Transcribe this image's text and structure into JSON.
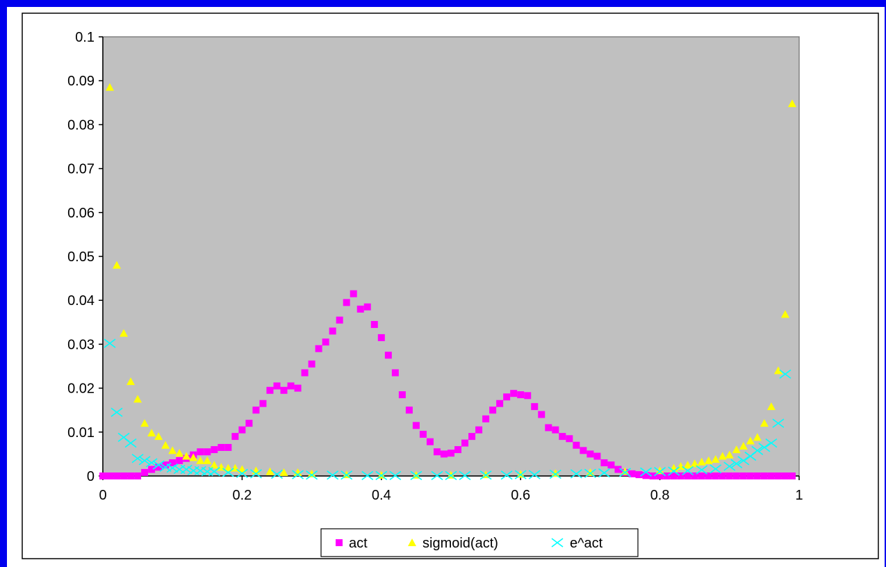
{
  "chart_data": {
    "type": "scatter",
    "xlim": [
      0,
      1
    ],
    "ylim": [
      0,
      0.1
    ],
    "xticks": [
      0,
      0.2,
      0.4,
      0.6,
      0.8,
      1
    ],
    "xtick_labels": [
      "0",
      "0.2",
      "0.4",
      "0.6",
      "0.8",
      "1"
    ],
    "yticks": [
      0,
      0.01,
      0.02,
      0.03,
      0.04,
      0.05,
      0.06,
      0.07,
      0.08,
      0.09,
      0.1
    ],
    "ytick_labels": [
      "0",
      "0.01",
      "0.02",
      "0.03",
      "0.04",
      "0.05",
      "0.06",
      "0.07",
      "0.08",
      "0.09",
      "0.1"
    ],
    "grid": false,
    "legend_position": "bottom-center",
    "plot_background": "#c0c0c0",
    "series": [
      {
        "name": "act",
        "marker": "square",
        "color": "#ff00ff",
        "x": [
          0,
          0.01,
          0.02,
          0.03,
          0.04,
          0.05,
          0.06,
          0.07,
          0.08,
          0.09,
          0.1,
          0.11,
          0.12,
          0.13,
          0.14,
          0.15,
          0.16,
          0.17,
          0.18,
          0.19,
          0.2,
          0.21,
          0.22,
          0.23,
          0.24,
          0.25,
          0.26,
          0.27,
          0.28,
          0.29,
          0.3,
          0.31,
          0.32,
          0.33,
          0.34,
          0.35,
          0.36,
          0.37,
          0.38,
          0.39,
          0.4,
          0.41,
          0.42,
          0.43,
          0.44,
          0.45,
          0.46,
          0.47,
          0.48,
          0.49,
          0.5,
          0.51,
          0.52,
          0.53,
          0.54,
          0.55,
          0.56,
          0.57,
          0.58,
          0.59,
          0.6,
          0.61,
          0.62,
          0.63,
          0.64,
          0.65,
          0.66,
          0.67,
          0.68,
          0.69,
          0.7,
          0.71,
          0.72,
          0.73,
          0.74,
          0.75,
          0.76,
          0.77,
          0.78,
          0.79,
          0.8,
          0.81,
          0.82,
          0.83,
          0.84,
          0.85,
          0.86,
          0.87,
          0.88,
          0.89,
          0.9,
          0.91,
          0.92,
          0.93,
          0.94,
          0.95,
          0.96,
          0.97,
          0.98,
          0.99
        ],
        "y": [
          0,
          0,
          0,
          0,
          0,
          0,
          0.0008,
          0.0015,
          0.002,
          0.0025,
          0.003,
          0.0035,
          0.004,
          0.0048,
          0.0055,
          0.0055,
          0.006,
          0.0065,
          0.0065,
          0.009,
          0.0105,
          0.012,
          0.015,
          0.0165,
          0.0195,
          0.0205,
          0.0195,
          0.0205,
          0.02,
          0.0235,
          0.0255,
          0.029,
          0.0305,
          0.033,
          0.0355,
          0.0395,
          0.0415,
          0.038,
          0.0385,
          0.0345,
          0.0315,
          0.0275,
          0.0235,
          0.0185,
          0.015,
          0.0115,
          0.0095,
          0.0078,
          0.0055,
          0.005,
          0.0052,
          0.006,
          0.0075,
          0.009,
          0.0105,
          0.013,
          0.015,
          0.0165,
          0.018,
          0.0188,
          0.0185,
          0.0183,
          0.0158,
          0.014,
          0.011,
          0.0105,
          0.009,
          0.0085,
          0.007,
          0.0058,
          0.005,
          0.0045,
          0.003,
          0.0025,
          0.0015,
          0.0008,
          0.0005,
          0.0003,
          0.0001,
          0,
          0,
          0,
          0,
          0,
          0,
          0,
          0,
          0,
          0,
          0,
          0,
          0,
          0,
          0,
          0,
          0,
          0,
          0,
          0,
          0
        ]
      },
      {
        "name": "sigmoid(act)",
        "marker": "triangle",
        "color": "#ffff00",
        "x": [
          0.01,
          0.02,
          0.03,
          0.04,
          0.05,
          0.06,
          0.07,
          0.08,
          0.09,
          0.1,
          0.11,
          0.12,
          0.13,
          0.14,
          0.15,
          0.16,
          0.17,
          0.18,
          0.19,
          0.2,
          0.22,
          0.24,
          0.26,
          0.28,
          0.3,
          0.35,
          0.4,
          0.45,
          0.5,
          0.55,
          0.6,
          0.65,
          0.7,
          0.75,
          0.8,
          0.82,
          0.83,
          0.84,
          0.85,
          0.86,
          0.87,
          0.88,
          0.89,
          0.9,
          0.91,
          0.92,
          0.93,
          0.94,
          0.95,
          0.96,
          0.97,
          0.98,
          0.99
        ],
        "y": [
          0.0885,
          0.048,
          0.0325,
          0.0215,
          0.0175,
          0.012,
          0.0098,
          0.009,
          0.007,
          0.0058,
          0.0052,
          0.0045,
          0.0042,
          0.0035,
          0.0035,
          0.0025,
          0.002,
          0.0018,
          0.0018,
          0.0015,
          0.0012,
          0.001,
          0.0008,
          0.0008,
          0.0005,
          0.0003,
          0.0002,
          0.0002,
          0.0002,
          0.0003,
          0.0004,
          0.0006,
          0.0008,
          0.001,
          0.0012,
          0.0018,
          0.0022,
          0.0025,
          0.0028,
          0.0032,
          0.0035,
          0.0038,
          0.0045,
          0.0048,
          0.006,
          0.0068,
          0.008,
          0.0088,
          0.012,
          0.0158,
          0.024,
          0.0368,
          0.0848
        ]
      },
      {
        "name": "e^act",
        "marker": "x",
        "color": "#00ffff",
        "x": [
          0.01,
          0.02,
          0.03,
          0.04,
          0.05,
          0.06,
          0.07,
          0.08,
          0.09,
          0.1,
          0.11,
          0.12,
          0.13,
          0.14,
          0.15,
          0.16,
          0.18,
          0.2,
          0.22,
          0.25,
          0.28,
          0.3,
          0.33,
          0.35,
          0.38,
          0.4,
          0.42,
          0.45,
          0.48,
          0.5,
          0.52,
          0.55,
          0.58,
          0.6,
          0.62,
          0.65,
          0.68,
          0.7,
          0.72,
          0.75,
          0.78,
          0.8,
          0.82,
          0.84,
          0.86,
          0.88,
          0.9,
          0.91,
          0.92,
          0.93,
          0.94,
          0.95,
          0.96,
          0.97,
          0.98
        ],
        "y": [
          0.0302,
          0.0145,
          0.0088,
          0.0075,
          0.004,
          0.0035,
          0.003,
          0.0025,
          0.002,
          0.0018,
          0.0015,
          0.0015,
          0.0012,
          0.0012,
          0.001,
          0.001,
          0.0008,
          0.0006,
          0.0005,
          0.0004,
          0.0003,
          0.0002,
          0.0002,
          0.0002,
          0.0001,
          0.0001,
          0.0001,
          0.0001,
          0.0001,
          0.0001,
          0.0001,
          0.0002,
          0.0002,
          0.0003,
          0.0003,
          0.0004,
          0.0005,
          0.0006,
          0.0007,
          0.0008,
          0.0009,
          0.001,
          0.0011,
          0.0012,
          0.0014,
          0.0016,
          0.0022,
          0.0028,
          0.0035,
          0.0045,
          0.0058,
          0.0065,
          0.0075,
          0.012,
          0.0232
        ]
      }
    ]
  }
}
